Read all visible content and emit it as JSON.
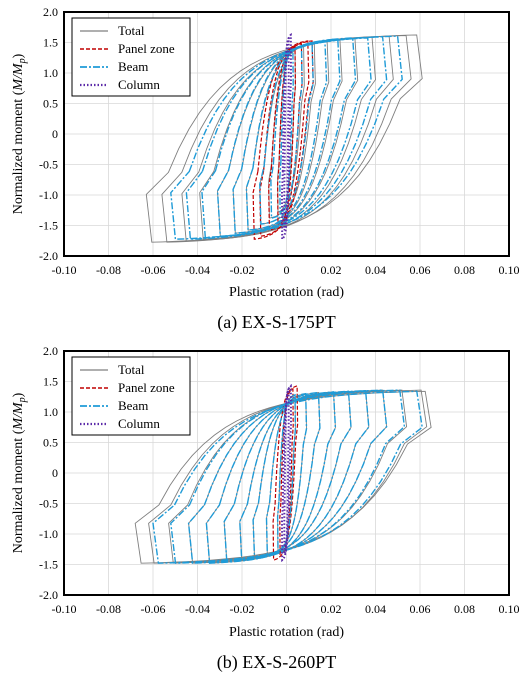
{
  "chart_data": [
    {
      "type": "line",
      "caption": "(a) EX-S-175PT",
      "xlabel": "Plastic rotation (rad)",
      "ylabel": {
        "pre": "Normalized moment (",
        "italic": "M/M",
        "sub": "p",
        "post": ")"
      },
      "xlim": [
        -0.1,
        0.1
      ],
      "ylim": [
        -2.0,
        2.0
      ],
      "xticks": [
        "-0.10",
        "-0.08",
        "-0.06",
        "-0.04",
        "-0.02",
        "0",
        "0.02",
        "0.04",
        "0.06",
        "0.08",
        "0.10"
      ],
      "yticks": [
        "2.0",
        "1.5",
        "1.0",
        "0.5",
        "0",
        "-0.5",
        "-1.0",
        "-1.5",
        "-2.0"
      ],
      "grid": true,
      "legend_position": "top-left",
      "series": [
        {
          "name": "Total",
          "color": "#7f7f7f",
          "style": "solid",
          "loops": [
            {
              "x": [
                -0.004,
                0.004
              ],
              "yn": -1.3,
              "yp": 1.4
            },
            {
              "x": [
                -0.008,
                0.008
              ],
              "yn": -1.4,
              "yp": 1.45
            },
            {
              "x": [
                -0.012,
                0.013
              ],
              "yn": -1.5,
              "yp": 1.5
            },
            {
              "x": [
                -0.018,
                0.019
              ],
              "yn": -1.6,
              "yp": 1.55
            },
            {
              "x": [
                -0.024,
                0.025
              ],
              "yn": -1.65,
              "yp": 1.58
            },
            {
              "x": [
                -0.031,
                0.032
              ],
              "yn": -1.7,
              "yp": 1.6
            },
            {
              "x": [
                -0.039,
                0.04
              ],
              "yn": -1.75,
              "yp": 1.62
            },
            {
              "x": [
                -0.047,
                0.048
              ],
              "yn": -1.78,
              "yp": 1.63
            },
            {
              "x": [
                -0.056,
                0.056
              ],
              "yn": -1.8,
              "yp": 1.64
            },
            {
              "x": [
                -0.063,
                0.061
              ],
              "yn": -1.8,
              "yp": 1.65
            }
          ]
        },
        {
          "name": "Panel zone",
          "color": "#c00000",
          "style": "dash",
          "loops": [
            {
              "x": [
                -0.004,
                0.004
              ],
              "yn": -1.5,
              "yp": 1.45
            },
            {
              "x": [
                -0.008,
                0.007
              ],
              "yn": -1.6,
              "yp": 1.5
            },
            {
              "x": [
                -0.012,
                0.01
              ],
              "yn": -1.7,
              "yp": 1.55
            },
            {
              "x": [
                -0.015,
                0.012
              ],
              "yn": -1.75,
              "yp": 1.55
            }
          ]
        },
        {
          "name": "Beam",
          "color": "#1f9bd7",
          "style": "dashdot",
          "loops": [
            {
              "x": [
                -0.003,
                0.003
              ],
              "yn": -1.3,
              "yp": 1.4
            },
            {
              "x": [
                -0.007,
                0.007
              ],
              "yn": -1.4,
              "yp": 1.45
            },
            {
              "x": [
                -0.012,
                0.012
              ],
              "yn": -1.5,
              "yp": 1.5
            },
            {
              "x": [
                -0.018,
                0.018
              ],
              "yn": -1.6,
              "yp": 1.55
            },
            {
              "x": [
                -0.024,
                0.024
              ],
              "yn": -1.65,
              "yp": 1.58
            },
            {
              "x": [
                -0.031,
                0.031
              ],
              "yn": -1.7,
              "yp": 1.6
            },
            {
              "x": [
                -0.038,
                0.038
              ],
              "yn": -1.72,
              "yp": 1.6
            },
            {
              "x": [
                -0.045,
                0.045
              ],
              "yn": -1.75,
              "yp": 1.62
            },
            {
              "x": [
                -0.052,
                0.052
              ],
              "yn": -1.75,
              "yp": 1.63
            }
          ]
        },
        {
          "name": "Column",
          "color": "#5b2aa8",
          "style": "dot",
          "loops": [
            {
              "x": [
                -0.001,
                0.001
              ],
              "yn": -1.6,
              "yp": 1.6
            },
            {
              "x": [
                -0.002,
                0.002
              ],
              "yn": -1.75,
              "yp": 1.65
            }
          ]
        }
      ]
    },
    {
      "type": "line",
      "caption": "(b) EX-S-260PT",
      "xlabel": "Plastic rotation (rad)",
      "ylabel": {
        "pre": "Normalized moment (",
        "italic": "M/M",
        "sub": "p",
        "post": ")"
      },
      "xlim": [
        -0.1,
        0.1
      ],
      "ylim": [
        -2.0,
        2.0
      ],
      "xticks": [
        "-0.10",
        "-0.08",
        "-0.06",
        "-0.04",
        "-0.02",
        "0",
        "0.02",
        "0.04",
        "0.06",
        "0.08",
        "0.10"
      ],
      "yticks": [
        "2.0",
        "1.5",
        "1.0",
        "0.5",
        "0",
        "-0.5",
        "-1.0",
        "-1.5",
        "-2.0"
      ],
      "grid": true,
      "legend_position": "top-left",
      "series": [
        {
          "name": "Total",
          "color": "#7f7f7f",
          "style": "solid",
          "loops": [
            {
              "x": [
                -0.004,
                0.004
              ],
              "yn": -1.3,
              "yp": 1.3
            },
            {
              "x": [
                -0.009,
                0.009
              ],
              "yn": -1.35,
              "yp": 1.32
            },
            {
              "x": [
                -0.015,
                0.015
              ],
              "yn": -1.4,
              "yp": 1.34
            },
            {
              "x": [
                -0.021,
                0.022
              ],
              "yn": -1.45,
              "yp": 1.35
            },
            {
              "x": [
                -0.028,
                0.029
              ],
              "yn": -1.45,
              "yp": 1.36
            },
            {
              "x": [
                -0.036,
                0.037
              ],
              "yn": -1.5,
              "yp": 1.37
            },
            {
              "x": [
                -0.044,
                0.045
              ],
              "yn": -1.5,
              "yp": 1.38
            },
            {
              "x": [
                -0.053,
                0.054
              ],
              "yn": -1.5,
              "yp": 1.38
            },
            {
              "x": [
                -0.062,
                0.063
              ],
              "yn": -1.5,
              "yp": 1.38
            },
            {
              "x": [
                -0.068,
                0.065
              ],
              "yn": -1.5,
              "yp": 1.36
            }
          ]
        },
        {
          "name": "Panel zone",
          "color": "#c00000",
          "style": "dash",
          "loops": [
            {
              "x": [
                -0.003,
                0.003
              ],
              "yn": -1.35,
              "yp": 1.4
            },
            {
              "x": [
                -0.006,
                0.005
              ],
              "yn": -1.45,
              "yp": 1.45
            }
          ]
        },
        {
          "name": "Beam",
          "color": "#1f9bd7",
          "style": "dashdot",
          "loops": [
            {
              "x": [
                -0.004,
                0.004
              ],
              "yn": -1.3,
              "yp": 1.3
            },
            {
              "x": [
                -0.009,
                0.009
              ],
              "yn": -1.35,
              "yp": 1.32
            },
            {
              "x": [
                -0.015,
                0.015
              ],
              "yn": -1.4,
              "yp": 1.34
            },
            {
              "x": [
                -0.021,
                0.022
              ],
              "yn": -1.45,
              "yp": 1.35
            },
            {
              "x": [
                -0.028,
                0.029
              ],
              "yn": -1.45,
              "yp": 1.36
            },
            {
              "x": [
                -0.036,
                0.037
              ],
              "yn": -1.5,
              "yp": 1.37
            },
            {
              "x": [
                -0.044,
                0.045
              ],
              "yn": -1.5,
              "yp": 1.38
            },
            {
              "x": [
                -0.052,
                0.053
              ],
              "yn": -1.5,
              "yp": 1.38
            },
            {
              "x": [
                -0.06,
                0.061
              ],
              "yn": -1.5,
              "yp": 1.36
            }
          ]
        },
        {
          "name": "Column",
          "color": "#5b2aa8",
          "style": "dot",
          "loops": [
            {
              "x": [
                -0.001,
                0.001
              ],
              "yn": -1.35,
              "yp": 1.4
            },
            {
              "x": [
                -0.002,
                0.002
              ],
              "yn": -1.45,
              "yp": 1.45
            }
          ]
        }
      ]
    }
  ]
}
